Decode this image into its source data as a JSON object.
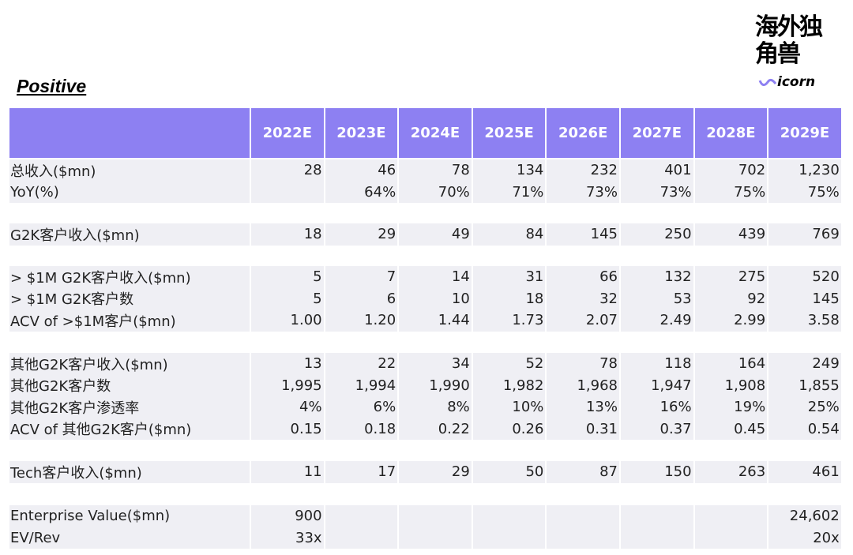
{
  "title": "Positive",
  "logo": {
    "cn": "海外独角兽",
    "en": "icorn"
  },
  "table": {
    "columns": [
      "2022E",
      "2023E",
      "2024E",
      "2025E",
      "2026E",
      "2027E",
      "2028E",
      "2029E"
    ],
    "groups": [
      [
        {
          "label": "总收入($mn)",
          "cells": [
            "28",
            "46",
            "78",
            "134",
            "232",
            "401",
            "702",
            "1,230"
          ]
        },
        {
          "label": "YoY(%)",
          "cells": [
            null,
            "64%",
            "70%",
            "71%",
            "73%",
            "73%",
            "75%",
            "75%"
          ]
        }
      ],
      [
        {
          "label": "G2K客户收入($mn)",
          "cells": [
            "18",
            "29",
            "49",
            "84",
            "145",
            "250",
            "439",
            "769"
          ]
        }
      ],
      [
        {
          "label": "> $1M G2K客户收入($mn)",
          "cells": [
            "5",
            "7",
            "14",
            "31",
            "66",
            "132",
            "275",
            "520"
          ]
        },
        {
          "label": "> $1M G2K客户数",
          "cells": [
            "5",
            "6",
            "10",
            "18",
            "32",
            "53",
            "92",
            "145"
          ]
        },
        {
          "label": "ACV of >$1M客户($mn)",
          "cells": [
            "1.00",
            "1.20",
            "1.44",
            "1.73",
            "2.07",
            "2.49",
            "2.99",
            "3.58"
          ]
        }
      ],
      [
        {
          "label": "其他G2K客户收入($mn)",
          "cells": [
            "13",
            "22",
            "34",
            "52",
            "78",
            "118",
            "164",
            "249"
          ]
        },
        {
          "label": "其他G2K客户数",
          "cells": [
            "1,995",
            "1,994",
            "1,990",
            "1,982",
            "1,968",
            "1,947",
            "1,908",
            "1,855"
          ]
        },
        {
          "label": "其他G2K客户渗透率",
          "cells": [
            "4%",
            "6%",
            "8%",
            "10%",
            "13%",
            "16%",
            "19%",
            "25%"
          ]
        },
        {
          "label": "ACV of 其他G2K客户($mn)",
          "cells": [
            "0.15",
            "0.18",
            "0.22",
            "0.26",
            "0.31",
            "0.37",
            "0.45",
            "0.54"
          ]
        }
      ],
      [
        {
          "label": "Tech客户收入($mn)",
          "cells": [
            "11",
            "17",
            "29",
            "50",
            "87",
            "150",
            "263",
            "461"
          ]
        }
      ],
      [
        {
          "label": "Enterprise Value($mn)",
          "cells": [
            "900",
            null,
            null,
            null,
            null,
            null,
            null,
            "24,602"
          ]
        },
        {
          "label": "EV/Rev",
          "cells": [
            "33x",
            null,
            null,
            null,
            null,
            null,
            null,
            "20x"
          ]
        }
      ]
    ]
  }
}
